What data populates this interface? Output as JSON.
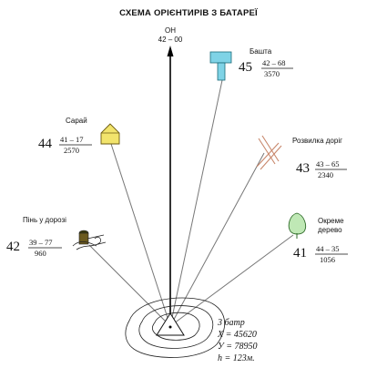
{
  "title": "СХЕМА ОРІЄНТИРІВ З БАТАРЕЇ",
  "north": {
    "label": "ОН",
    "value": "42 – 00"
  },
  "landmarks": [
    {
      "key": "tower",
      "name": "Башта",
      "number": "45",
      "angle": "42 – 68",
      "distance": "3570",
      "color": "#7fd3e6"
    },
    {
      "key": "shed",
      "name": "Сарай",
      "number": "44",
      "angle": "41 – 17",
      "distance": "2570",
      "color": "#f2e46c"
    },
    {
      "key": "fork",
      "name": "Розвилка доріг",
      "number": "43",
      "angle": "43 – 65",
      "distance": "2340",
      "color": "#c8876b"
    },
    {
      "key": "stump",
      "name": "Пінь  у дорозі",
      "number": "42",
      "angle": "39 – 77",
      "distance": "960",
      "color": "#6b5a1e"
    },
    {
      "key": "tree",
      "name": "Окреме\nдерево",
      "number": "41",
      "angle": "44 – 35",
      "distance": "1056",
      "color": "#bfe8b5"
    }
  ],
  "battery": {
    "name": "3 батр",
    "x": "X = 45620",
    "y": "У = 78950",
    "h": "h = 123м."
  }
}
